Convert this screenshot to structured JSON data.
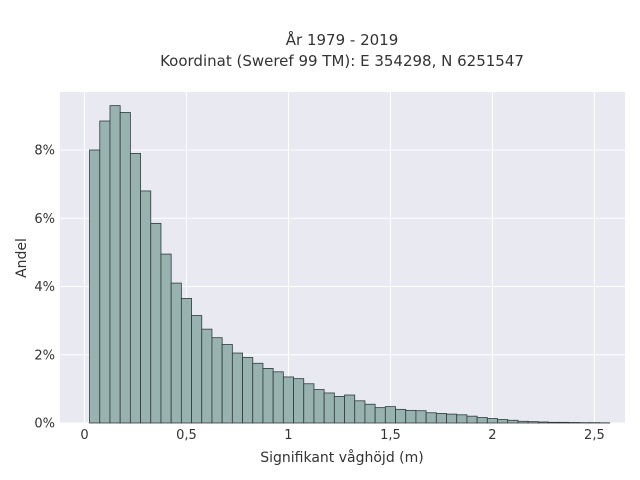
{
  "chart_data": {
    "type": "bar",
    "title": "År 1979 - 2019",
    "subtitle": "Koordinat (Sweref 99 TM): E 354298, N 6251547",
    "xlabel": "Signifikant våghöjd (m)",
    "ylabel": "Andel",
    "xlim": [
      -0.12,
      2.65
    ],
    "ylim": [
      0,
      9.7
    ],
    "x_ticks": [
      0,
      0.5,
      1,
      1.5,
      2,
      2.5
    ],
    "x_tick_labels": [
      "0",
      "0,5",
      "1",
      "1,5",
      "2",
      "2,5"
    ],
    "y_ticks": [
      0,
      2,
      4,
      6,
      8
    ],
    "y_tick_labels": [
      "0%",
      "2%",
      "4%",
      "6%",
      "8%"
    ],
    "bin_start": 0.025,
    "bin_width": 0.05,
    "values": [
      8.0,
      8.85,
      9.3,
      9.1,
      7.9,
      6.8,
      5.85,
      4.95,
      4.1,
      3.65,
      3.15,
      2.75,
      2.5,
      2.3,
      2.05,
      1.92,
      1.75,
      1.6,
      1.5,
      1.35,
      1.3,
      1.15,
      0.98,
      0.88,
      0.78,
      0.82,
      0.65,
      0.55,
      0.45,
      0.48,
      0.4,
      0.37,
      0.36,
      0.3,
      0.28,
      0.26,
      0.24,
      0.2,
      0.16,
      0.13,
      0.1,
      0.08,
      0.05,
      0.04,
      0.03,
      0.02,
      0.02,
      0.015,
      0.01,
      0.01,
      0.005
    ],
    "grid": true,
    "colors": {
      "bar": "#98b2b0",
      "bar_edge": "#2f3b3a",
      "plot_bg": "#e9e9f2",
      "grid": "#ffffff",
      "text": "#333333"
    }
  }
}
